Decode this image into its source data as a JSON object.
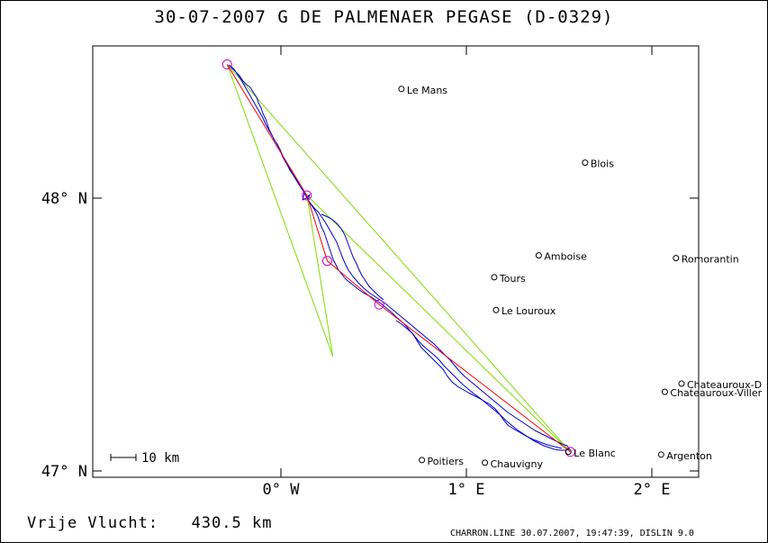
{
  "title": "30-07-2007   G  DE PALMENAER   PEGASE (D-0329)",
  "axes": {
    "x_ticks": [
      {
        "label": "0° W",
        "value": 0
      },
      {
        "label": "1° E",
        "value": 1
      },
      {
        "label": "2° E",
        "value": 2
      }
    ],
    "y_ticks": [
      {
        "label": "48° N",
        "value": 48
      },
      {
        "label": "47° N",
        "value": 47
      }
    ]
  },
  "scale_bar": {
    "label": "10 km"
  },
  "cities": [
    {
      "name": "Le Mans",
      "lon": 0.65,
      "lat": 48.4
    },
    {
      "name": "Blois",
      "lon": 1.64,
      "lat": 48.13
    },
    {
      "name": "Amboise",
      "lon": 1.39,
      "lat": 47.79
    },
    {
      "name": "Romorantin",
      "lon": 2.13,
      "lat": 47.78
    },
    {
      "name": "Tours",
      "lon": 1.15,
      "lat": 47.71
    },
    {
      "name": "Le Louroux",
      "lon": 1.16,
      "lat": 47.59
    },
    {
      "name": "Chateauroux-D",
      "lon": 2.16,
      "lat": 47.32
    },
    {
      "name": "Chateauroux-Viller",
      "lon": 2.07,
      "lat": 47.29
    },
    {
      "name": "Le Blanc",
      "lon": 1.55,
      "lat": 47.07
    },
    {
      "name": "Argenton",
      "lon": 2.05,
      "lat": 47.06
    },
    {
      "name": "Poitiers",
      "lon": 0.76,
      "lat": 47.04
    },
    {
      "name": "Chauvigny",
      "lon": 1.1,
      "lat": 47.03
    }
  ],
  "task_points": [
    {
      "lon": -0.29,
      "lat": 48.49
    },
    {
      "lon": 0.14,
      "lat": 48.01
    },
    {
      "lon": 0.25,
      "lat": 47.77
    },
    {
      "lon": 0.53,
      "lat": 47.61
    },
    {
      "lon": 1.56,
      "lat": 47.07
    }
  ],
  "colors": {
    "track": "#0000cc",
    "task_line": "#ff0000",
    "fai_triangle": "#7fdd00",
    "turnpoint": "#cc00cc",
    "frame": "#000000"
  },
  "footer": {
    "free_flight_label": "Vrije Vlucht:",
    "free_flight_value": "430.5 km",
    "credits": "CHARRON.LINE 30.07.2007, 19:47:39, DISLIN 9.0"
  }
}
